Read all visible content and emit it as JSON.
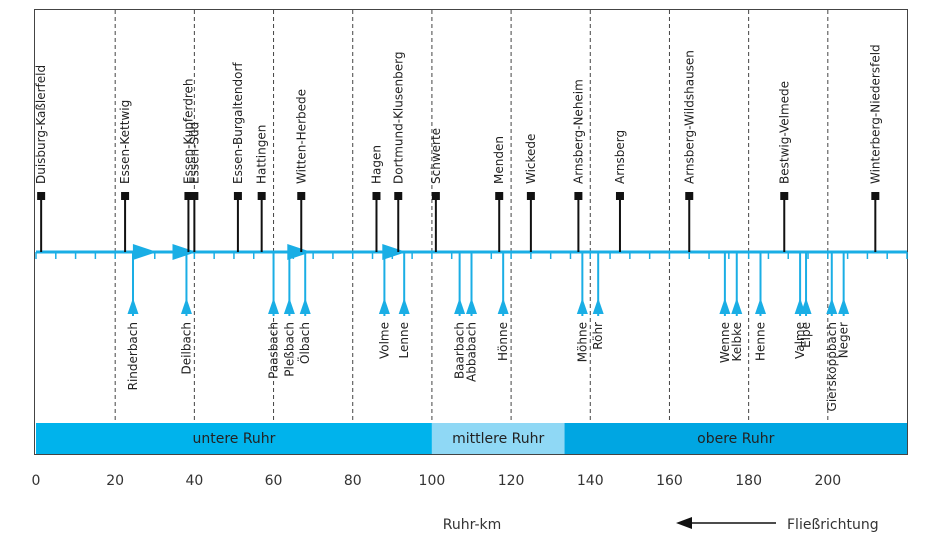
{
  "colors": {
    "river": "#1aaee5",
    "segment_lower": "#00b3ec",
    "segment_middle": "#8fd8f5",
    "segment_upper": "#00a6e2",
    "gauge": "#111111",
    "grid": "#444444"
  },
  "axis": {
    "min": 0,
    "max": 220,
    "ticks": [
      0,
      20,
      40,
      60,
      80,
      100,
      120,
      140,
      160,
      180,
      200
    ],
    "tick_labels": [
      "0",
      "20",
      "40",
      "60",
      "80",
      "100",
      "120",
      "140",
      "160",
      "180",
      "200"
    ],
    "label": "Ruhr-km",
    "grid": "dashed vertical every 20 km"
  },
  "flow": {
    "label": "Fließrichtung",
    "arrow_markers_km": [
      27,
      37,
      66,
      90
    ]
  },
  "gauges": [
    {
      "name": "Duisburg-Kaßlerfeld",
      "km": 1.3
    },
    {
      "name": "Essen-Kettwig",
      "km": 22.5
    },
    {
      "name": "Essen-Kupferdreh",
      "km": 38.5
    },
    {
      "name": "Essen-Süd",
      "km": 40
    },
    {
      "name": "Essen-Burgaltendorf",
      "km": 51
    },
    {
      "name": "Hattingen",
      "km": 57
    },
    {
      "name": "Witten-Herbede",
      "km": 67
    },
    {
      "name": "Hagen",
      "km": 86
    },
    {
      "name": "Dortmund-Klusenberg",
      "km": 91.5
    },
    {
      "name": "Schwerte",
      "km": 101
    },
    {
      "name": "Menden",
      "km": 117
    },
    {
      "name": "Wickede",
      "km": 125
    },
    {
      "name": "Arnsberg-Neheim",
      "km": 137
    },
    {
      "name": "Arnsberg",
      "km": 147.5
    },
    {
      "name": "Arnsberg-Wildshausen",
      "km": 165
    },
    {
      "name": "Bestwig-Velmede",
      "km": 189
    },
    {
      "name": "Winterberg-Niedersfeld",
      "km": 212
    }
  ],
  "tributaries": [
    {
      "name": "Rinderbach",
      "km": 24.5
    },
    {
      "name": "Deilbach",
      "km": 38
    },
    {
      "name": "Paasbach",
      "km": 60
    },
    {
      "name": "Pleßbach",
      "km": 64
    },
    {
      "name": "Ölbach",
      "km": 68
    },
    {
      "name": "Volme",
      "km": 88
    },
    {
      "name": "Lenne",
      "km": 93
    },
    {
      "name": "Baarbach",
      "km": 107
    },
    {
      "name": "Abbabach",
      "km": 110
    },
    {
      "name": "Hönne",
      "km": 118
    },
    {
      "name": "Möhne",
      "km": 138
    },
    {
      "name": "Röhr",
      "km": 142
    },
    {
      "name": "Wenne",
      "km": 174
    },
    {
      "name": "Kelbke",
      "km": 177
    },
    {
      "name": "Henne",
      "km": 183
    },
    {
      "name": "Valme",
      "km": 193
    },
    {
      "name": "Elpe",
      "km": 194.5
    },
    {
      "name": "Gierskoppbach",
      "km": 201
    },
    {
      "name": "Neger",
      "km": 204
    }
  ],
  "segments": [
    {
      "label": "untere Ruhr",
      "start_km": 0,
      "end_km": 100,
      "color": "#00b3ec"
    },
    {
      "label": "mittlere Ruhr",
      "start_km": 100,
      "end_km": 133.5,
      "color": "#8fd8f5"
    },
    {
      "label": "obere Ruhr",
      "start_km": 133.5,
      "end_km": 220,
      "color": "#00a6e2"
    }
  ]
}
